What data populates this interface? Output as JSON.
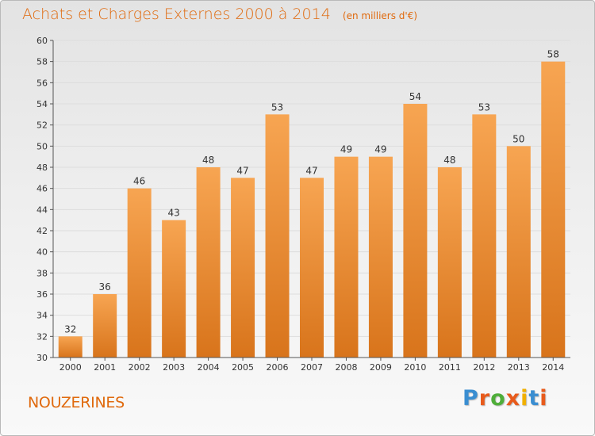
{
  "title": "Achats et Charges Externes 2000 à 2014",
  "subtitle": "(en milliers d'€)",
  "place": "NOUZERINES",
  "logo": {
    "text": "Proxiti",
    "colors": [
      "#3a8ed1",
      "#e85b1c",
      "#4fae3a",
      "#e85b1c",
      "#f0b000",
      "#3a8ed1",
      "#e85b1c"
    ]
  },
  "colors": {
    "bar_light": "#f7a552",
    "bar_dark": "#d8741b",
    "text_accent": "#e06a0e",
    "axis": "#555555",
    "grid": "#dddddd"
  },
  "chart_data": {
    "type": "bar",
    "title": "Achats et Charges Externes 2000 à 2014",
    "subtitle": "(en milliers d'€)",
    "categories": [
      "2000",
      "2001",
      "2002",
      "2003",
      "2004",
      "2005",
      "2006",
      "2007",
      "2008",
      "2009",
      "2010",
      "2011",
      "2012",
      "2013",
      "2014"
    ],
    "values": [
      32,
      36,
      46,
      43,
      48,
      47,
      53,
      47,
      49,
      49,
      54,
      48,
      53,
      50,
      58
    ],
    "ylim": [
      30,
      60
    ],
    "yticks": [
      30,
      32,
      34,
      36,
      38,
      40,
      42,
      44,
      46,
      48,
      50,
      52,
      54,
      56,
      58,
      60
    ],
    "grid": true,
    "data_labels": true
  }
}
